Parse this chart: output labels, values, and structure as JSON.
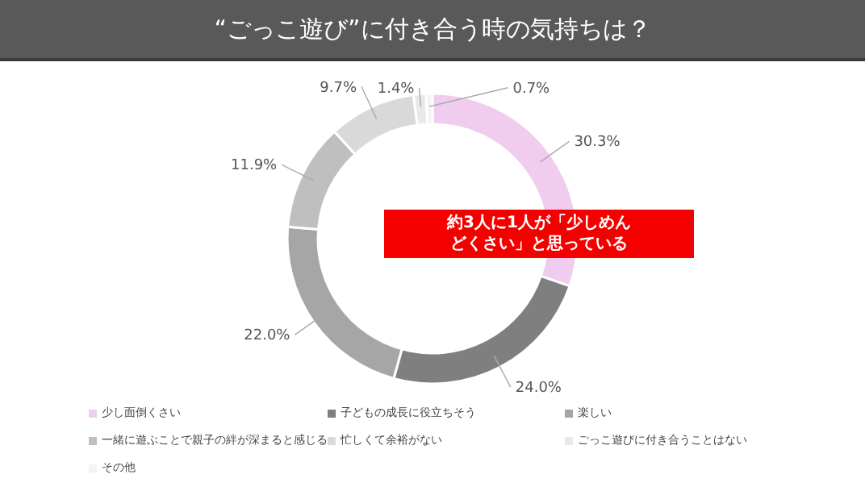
{
  "chart_data": {
    "type": "donut",
    "title": "“ごっこ遊び”に付き合う時の気持ちは？",
    "categories": [
      "少し面倒くさい",
      "子どもの成長に役立ちそう",
      "楽しい",
      "一緒に遊ぶことで親子の絆が深まると感じる",
      "忙しくて余裕がない",
      "ごっこ遊びに付き合うことはない",
      "その他"
    ],
    "values": [
      30.3,
      24.0,
      22.0,
      11.9,
      9.7,
      1.4,
      0.7
    ],
    "value_labels": [
      "30.3%",
      "24.0%",
      "22.0%",
      "11.9%",
      "9.7%",
      "1.4%",
      "0.7%"
    ],
    "colors": [
      "#f0cdef",
      "#7f7f7f",
      "#a6a6a6",
      "#bfbfbf",
      "#d9d9d9",
      "#e9e9e9",
      "#f3f3f3"
    ],
    "legend": "bottom",
    "annotations": [
      "約3人に1人が「少しめんどくさい」と思っている"
    ]
  }
}
